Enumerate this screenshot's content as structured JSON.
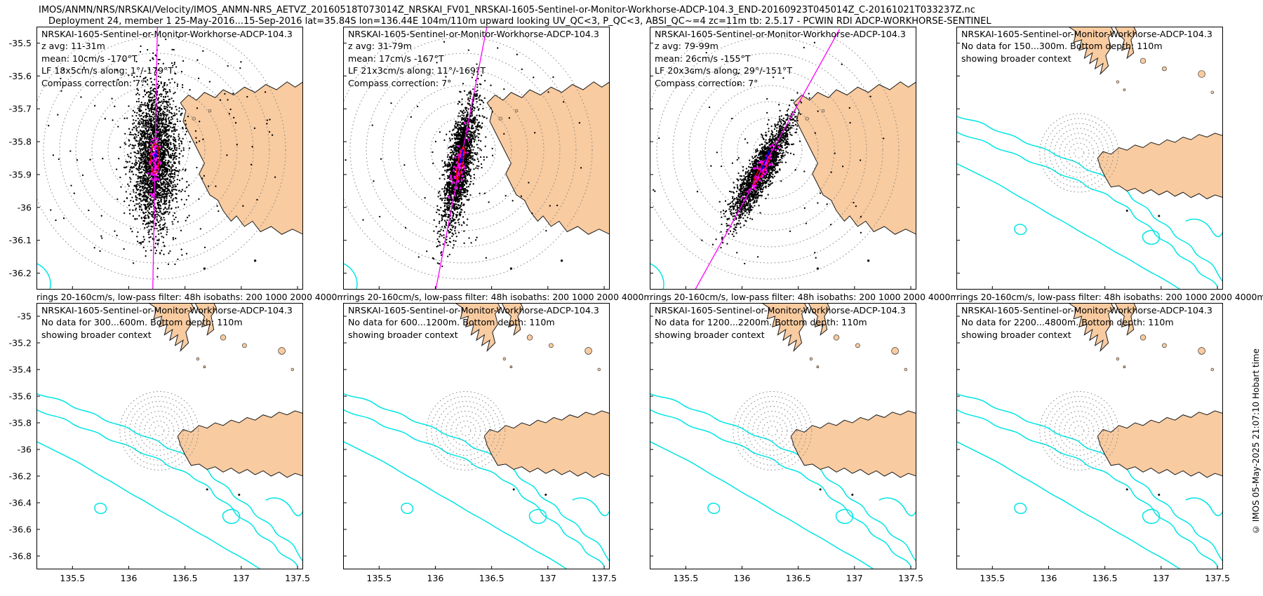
{
  "header": {
    "line1": "IMOS/ANMN/NRS/NRSKAI/Velocity/IMOS_ANMN-NRS_AETVZ_20160518T073014Z_NRSKAI_FV01_NRSKAI-1605-Sentinel-or-Monitor-Workhorse-ADCP-104.3_END-20160923T045014Z_C-20161021T033237Z.nc",
    "line2": "Deployment 24, member 1 25-May-2016...15-Sep-2016 lat=35.84S lon=136.44E 104m/110m upward looking UV_QC<3, P_QC<3, ABSI_QC~=4 zc=11m tb: 2.5.17 - PCWIN RDI ADCP-WORKHORSE-SENTINEL"
  },
  "copyright": "© IMOS 05-May-2025  21:07:10 Hobart time",
  "colors": {
    "land": "#F8CBA0",
    "coast": "#1a1a1a",
    "isobath": "#00E5E5",
    "rings": "#8C8C8C",
    "scatter": "#000000",
    "lowpass": "#FF00FF",
    "ellipse": "#FF0000",
    "arrow": "#0000DD",
    "background": "#FFFFFF"
  },
  "axes": {
    "row1_yticks": [
      "-35.5",
      "-35.6",
      "-35.7",
      "-35.8",
      "-35.9",
      "-36",
      "-36.1",
      "-36.2"
    ],
    "row2_yticks": [
      "-35",
      "-35.2",
      "-35.4",
      "-35.6",
      "-35.8",
      "-36",
      "-36.2",
      "-36.4",
      "-36.6",
      "-36.8"
    ],
    "xticks": [
      "135.5",
      "136",
      "136.5",
      "137",
      "137.5"
    ]
  },
  "panels": [
    {
      "row": 0,
      "col": 0,
      "type": "scatter",
      "title": "NRSKAI-1605-Sentinel-or-Monitor-Workhorse-ADCP-104.3",
      "lines": [
        "z avg: 11-31m",
        "mean: 10cm/s -170°T",
        "LF 18x5cm/s along: 1°/-179°T",
        "Compass correction: 7°"
      ],
      "footer": "rings 20-160cm/s, low-pass filter: 48h isobaths: 200 1000 2000 4000m"
    },
    {
      "row": 0,
      "col": 1,
      "type": "scatter",
      "title": "NRSKAI-1605-Sentinel-or-Monitor-Workhorse-ADCP-104.3",
      "lines": [
        "z avg: 31-79m",
        "mean: 17cm/s -167°T",
        "LF 21x3cm/s along: 11°/-169°T",
        "Compass correction: 7°"
      ],
      "footer": "rings 20-160cm/s, low-pass filter: 48h isobaths: 200 1000 2000 4000m"
    },
    {
      "row": 0,
      "col": 2,
      "type": "scatter",
      "title": "NRSKAI-1605-Sentinel-or-Monitor-Workhorse-ADCP-104.3",
      "lines": [
        "z avg: 79-99m",
        "mean: 26cm/s -155°T",
        "LF 20x3cm/s along: 29°/-151°T",
        "Compass correction: 7°"
      ],
      "footer": "rings 20-160cm/s, low-pass filter: 48h isobaths: 200 1000 2000 4000m"
    },
    {
      "row": 0,
      "col": 3,
      "type": "map",
      "title": "NRSKAI-1605-Sentinel-or-Monitor-Workhorse-ADCP-104.3",
      "lines": [
        "No data for 150...300m. Bottom depth: 110m",
        "showing broader context"
      ],
      "footer": "rings 20-160cm/s, low-pass filter: 48h isobaths: 200 1000 2000 4000m"
    },
    {
      "row": 1,
      "col": 0,
      "type": "map",
      "title": "NRSKAI-1605-Sentinel-or-Monitor-Workhorse-ADCP-104.3",
      "lines": [
        "No data for 300...600m. Bottom depth: 110m",
        "showing broader context"
      ],
      "footer": null
    },
    {
      "row": 1,
      "col": 1,
      "type": "map",
      "title": "NRSKAI-1605-Sentinel-or-Monitor-Workhorse-ADCP-104.3",
      "lines": [
        "No data for 600...1200m. Bottom depth: 110m",
        "showing broader context"
      ],
      "footer": null
    },
    {
      "row": 1,
      "col": 2,
      "type": "map",
      "title": "NRSKAI-1605-Sentinel-or-Monitor-Workhorse-ADCP-104.3",
      "lines": [
        "No data for 1200...2200m. Bottom depth: 110m",
        "showing broader context"
      ],
      "footer": null
    },
    {
      "row": 1,
      "col": 3,
      "type": "map",
      "title": "NRSKAI-1605-Sentinel-or-Monitor-Workhorse-ADCP-104.3",
      "lines": [
        "No data for 2200...4800m. Bottom depth: 110m",
        "showing broader context"
      ],
      "footer": null
    }
  ],
  "chart_data": [
    {
      "panel": 1,
      "type": "scatter",
      "subject": "ADCP current velocity distribution, east vs north (cm/s)",
      "title": "NRSKAI-1605-Sentinel-or-Monitor-Workhorse-ADCP-104.3",
      "z_avg_m": "11-31m",
      "mean": "10cm/s -170°T",
      "lf_ellipse_cms": "18x5",
      "lf_along_degT": "1°/-179°T",
      "compass_correction": "7°",
      "speed_rings_cms": [
        20,
        40,
        60,
        80,
        100,
        120,
        140,
        160
      ],
      "lowpass_filter": "48h",
      "isobath_levels_m": [
        200,
        1000,
        2000,
        4000
      ],
      "mooring": {
        "lon_E": 136.44,
        "lat_S": 35.84
      },
      "xlim": [
        135.2,
        137.65
      ],
      "ylim": [
        -36.25,
        -35.45
      ]
    },
    {
      "panel": 2,
      "type": "scatter",
      "subject": "ADCP current velocity distribution, east vs north (cm/s)",
      "title": "NRSKAI-1605-Sentinel-or-Monitor-Workhorse-ADCP-104.3",
      "z_avg_m": "31-79m",
      "mean": "17cm/s -167°T",
      "lf_ellipse_cms": "21x3",
      "lf_along_degT": "11°/-169°T",
      "compass_correction": "7°",
      "speed_rings_cms": [
        20,
        40,
        60,
        80,
        100,
        120,
        140,
        160
      ],
      "lowpass_filter": "48h",
      "isobath_levels_m": [
        200,
        1000,
        2000,
        4000
      ],
      "mooring": {
        "lon_E": 136.44,
        "lat_S": 35.84
      },
      "xlim": [
        135.2,
        137.65
      ],
      "ylim": [
        -36.25,
        -35.45
      ]
    },
    {
      "panel": 3,
      "type": "scatter",
      "subject": "ADCP current velocity distribution, east vs north (cm/s)",
      "title": "NRSKAI-1605-Sentinel-or-Monitor-Workhorse-ADCP-104.3",
      "z_avg_m": "79-99m",
      "mean": "26cm/s -155°T",
      "lf_ellipse_cms": "20x3",
      "lf_along_degT": "29°/-151°T",
      "compass_correction": "7°",
      "speed_rings_cms": [
        20,
        40,
        60,
        80,
        100,
        120,
        140,
        160
      ],
      "lowpass_filter": "48h",
      "isobath_levels_m": [
        200,
        1000,
        2000,
        4000
      ],
      "mooring": {
        "lon_E": 136.44,
        "lat_S": 35.84
      },
      "xlim": [
        135.2,
        137.65
      ],
      "ylim": [
        -36.25,
        -35.45
      ]
    },
    {
      "panel": 4,
      "type": "map",
      "no_data": "No data for 150...300m",
      "bottom_depth_m": 110,
      "note": "showing broader context",
      "mooring": {
        "lon_E": 136.44,
        "lat_S": 35.84
      },
      "isobath_levels_m": [
        200,
        1000,
        2000,
        4000
      ],
      "xlim": [
        135.35,
        137.65
      ],
      "ylim": [
        -36.9,
        -34.9
      ]
    },
    {
      "panel": 5,
      "type": "map",
      "no_data": "No data for 300...600m",
      "bottom_depth_m": 110,
      "note": "showing broader context",
      "mooring": {
        "lon_E": 136.44,
        "lat_S": 35.84
      },
      "isobath_levels_m": [
        200,
        1000,
        2000,
        4000
      ],
      "xlim": [
        135.35,
        137.65
      ],
      "ylim": [
        -36.9,
        -34.9
      ],
      "xticks": [
        135.5,
        136,
        136.5,
        137,
        137.5
      ],
      "yticks": [
        -35,
        -35.2,
        -35.4,
        -35.6,
        -35.8,
        -36,
        -36.2,
        -36.4,
        -36.6,
        -36.8
      ]
    },
    {
      "panel": 6,
      "type": "map",
      "no_data": "No data for 600...1200m",
      "bottom_depth_m": 110,
      "note": "showing broader context",
      "mooring": {
        "lon_E": 136.44,
        "lat_S": 35.84
      },
      "isobath_levels_m": [
        200,
        1000,
        2000,
        4000
      ],
      "xlim": [
        135.35,
        137.65
      ],
      "ylim": [
        -36.9,
        -34.9
      ]
    },
    {
      "panel": 7,
      "type": "map",
      "no_data": "No data for 1200...2200m",
      "bottom_depth_m": 110,
      "note": "showing broader context",
      "mooring": {
        "lon_E": 136.44,
        "lat_S": 35.84
      },
      "isobath_levels_m": [
        200,
        1000,
        2000,
        4000
      ],
      "xlim": [
        135.35,
        137.65
      ],
      "ylim": [
        -36.9,
        -34.9
      ]
    },
    {
      "panel": 8,
      "type": "map",
      "no_data": "No data for 2200...4800m",
      "bottom_depth_m": 110,
      "note": "showing broader context",
      "mooring": {
        "lon_E": 136.44,
        "lat_S": 35.84
      },
      "isobath_levels_m": [
        200,
        1000,
        2000,
        4000
      ],
      "xlim": [
        135.35,
        137.65
      ],
      "ylim": [
        -36.9,
        -34.9
      ]
    }
  ]
}
